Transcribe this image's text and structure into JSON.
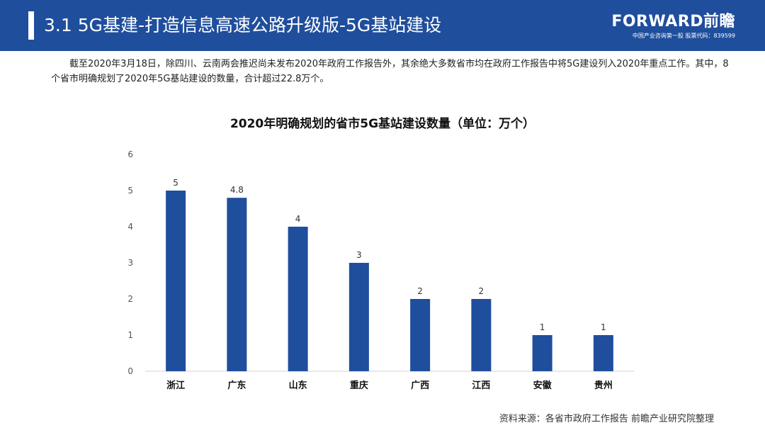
{
  "header": {
    "title": "3.1 5G基建-打造信息高速公路升级版-5G基站建设",
    "logo": "FORWARD前瞻",
    "logo_sub": "中国产业咨询第一股  股票代码：839599"
  },
  "intro": "截至2020年3月18日，除四川、云南两会推迟尚未发布2020年政府工作报告外，其余绝大多数省市均在政府工作报告中将5G建设列入2020年重点工作。其中，8个省市明确规划了2020年5G基站建设的数量，合计超过22.8万个。",
  "source": "资料来源：各省市政府工作报告 前瞻产业研究院整理",
  "colors": {
    "header": "#1f4e9c",
    "bar": "#1f4e9c"
  },
  "chart_data": {
    "type": "bar",
    "title": "2020年明确规划的省市5G基站建设数量（单位：万个）",
    "categories": [
      "浙江",
      "广东",
      "山东",
      "重庆",
      "广西",
      "江西",
      "安徽",
      "贵州"
    ],
    "values": [
      5,
      4.8,
      4,
      3,
      2,
      2,
      1,
      1
    ],
    "data_labels": [
      "5",
      "4.8",
      "4",
      "3",
      "2",
      "2",
      "1",
      "1"
    ],
    "yticks": [
      0,
      1,
      2,
      3,
      4,
      5,
      6
    ],
    "ylim": [
      0,
      6
    ],
    "xlabel": "",
    "ylabel": "",
    "grid": false
  }
}
